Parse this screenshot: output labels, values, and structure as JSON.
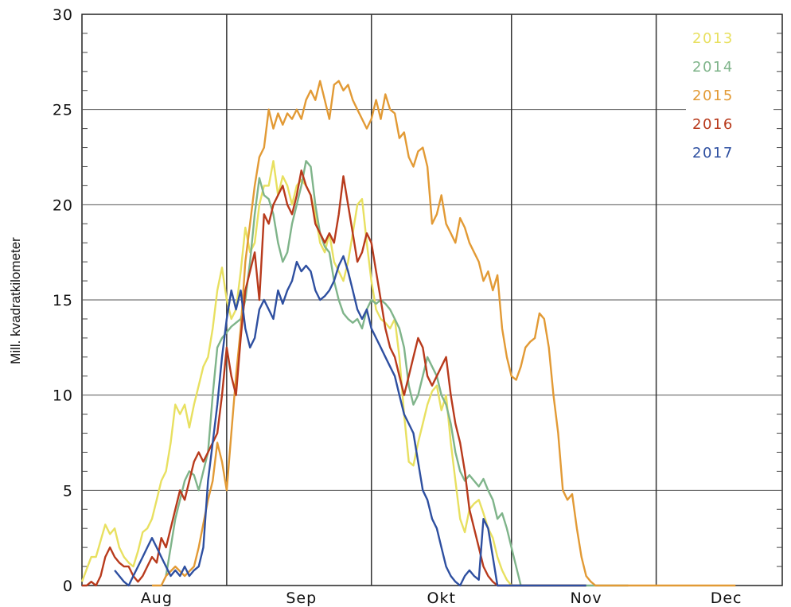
{
  "chart_data": {
    "type": "line",
    "ylabel": "Mill. kvadratkilometer",
    "ylim": [
      0,
      30
    ],
    "yticks": [
      "0",
      "5",
      "10",
      "15",
      "20",
      "25",
      "30"
    ],
    "x_unit": "days after 15 Jul",
    "xlim": [
      0,
      150
    ],
    "month_labels": [
      "Aug",
      "Sep",
      "Okt",
      "Nov",
      "Dec"
    ],
    "month_label_x": [
      16,
      47,
      77,
      108,
      138
    ],
    "month_boundaries_x": [
      0,
      31,
      62,
      92,
      123
    ],
    "legend_position": "top-right",
    "grid": true,
    "series": [
      {
        "name": "2013",
        "color": "#e8e060",
        "x": [
          0,
          2,
          3,
          5,
          6,
          7,
          8,
          9,
          10,
          11,
          12,
          13,
          14,
          15,
          16,
          17,
          18,
          19,
          20,
          21,
          22,
          23,
          24,
          25,
          26,
          27,
          28,
          29,
          30,
          31,
          32,
          33,
          34,
          35,
          36,
          37,
          38,
          39,
          40,
          41,
          42,
          43,
          44,
          45,
          46,
          47,
          48,
          49,
          50,
          51,
          52,
          53,
          54,
          55,
          56,
          57,
          58,
          59,
          60,
          61,
          62,
          63,
          64,
          65,
          66,
          67,
          68,
          69,
          70,
          71,
          72,
          73,
          74,
          75,
          76,
          77,
          78,
          79,
          80,
          81,
          82,
          83,
          84,
          85,
          86,
          87,
          88,
          89,
          90,
          91,
          92,
          93,
          94,
          95,
          96,
          97,
          98,
          99,
          100,
          101,
          102,
          103,
          104,
          105,
          106,
          107,
          108
        ],
        "y": [
          0.2,
          1.5,
          1.5,
          3.2,
          2.7,
          3.0,
          2.0,
          1.5,
          1.2,
          1.0,
          1.8,
          2.8,
          3.0,
          3.5,
          4.5,
          5.5,
          6.0,
          7.5,
          9.5,
          9.0,
          9.5,
          8.3,
          9.5,
          10.5,
          11.5,
          12.0,
          13.5,
          15.5,
          16.7,
          15.0,
          14.0,
          14.5,
          16.5,
          18.8,
          17.5,
          18.0,
          20.0,
          21.0,
          21.0,
          22.3,
          20.5,
          21.5,
          21.0,
          20.0,
          21.0,
          21.3,
          21.0,
          20.5,
          19.5,
          18.0,
          17.5,
          18.5,
          17.0,
          16.5,
          16.0,
          17.0,
          18.5,
          20.0,
          20.3,
          18.0,
          16.0,
          14.5,
          14.0,
          13.8,
          13.5,
          14.0,
          12.0,
          9.0,
          6.5,
          6.3,
          7.5,
          8.5,
          9.5,
          10.2,
          10.5,
          9.2,
          10.0,
          7.5,
          5.5,
          3.5,
          2.8,
          4.0,
          4.3,
          4.5,
          3.8,
          3.0,
          2.5,
          1.5,
          0.8,
          0.3,
          0.0,
          0.0,
          0.0,
          0.0,
          0.0,
          0.0,
          0.0,
          0.0,
          0.0,
          0.0,
          0.0,
          0.0,
          0.0,
          0.0,
          0.0,
          0.0,
          0.0
        ]
      },
      {
        "name": "2014",
        "color": "#7fb48a",
        "x": [
          18,
          19,
          20,
          21,
          22,
          23,
          24,
          25,
          26,
          27,
          28,
          29,
          30,
          31,
          32,
          33,
          34,
          35,
          36,
          37,
          38,
          39,
          40,
          41,
          42,
          43,
          44,
          45,
          46,
          47,
          48,
          49,
          50,
          51,
          52,
          53,
          54,
          55,
          56,
          57,
          58,
          59,
          60,
          61,
          62,
          63,
          64,
          65,
          66,
          67,
          68,
          69,
          70,
          71,
          72,
          73,
          74,
          75,
          76,
          77,
          78,
          79,
          80,
          81,
          82,
          83,
          84,
          85,
          86,
          87,
          88,
          89,
          90,
          91,
          92,
          93,
          94,
          95,
          96,
          97,
          98,
          99,
          100,
          101,
          102,
          103,
          104,
          105,
          106,
          107,
          108,
          109,
          110,
          111,
          112,
          113,
          114,
          115,
          116,
          117
        ],
        "y": [
          0.5,
          2.0,
          3.5,
          4.5,
          5.5,
          6.0,
          5.8,
          5.0,
          6.0,
          7.0,
          10.0,
          12.5,
          13.0,
          13.3,
          13.6,
          13.8,
          14.0,
          15.0,
          17.0,
          19.5,
          21.4,
          20.5,
          20.3,
          19.5,
          18.0,
          17.0,
          17.5,
          19.0,
          20.0,
          21.0,
          22.3,
          22.0,
          20.0,
          18.5,
          17.8,
          17.5,
          16.0,
          15.0,
          14.3,
          14.0,
          13.8,
          14.0,
          13.5,
          14.5,
          15.0,
          14.8,
          15.0,
          14.8,
          14.5,
          14.0,
          13.5,
          12.5,
          10.5,
          9.5,
          10.0,
          11.0,
          12.0,
          11.5,
          11.0,
          10.0,
          9.5,
          8.5,
          7.0,
          6.0,
          5.5,
          5.8,
          5.5,
          5.2,
          5.6,
          5.0,
          4.5,
          3.5,
          3.8,
          3.0,
          2.0,
          1.0,
          0.0,
          0.0,
          0.0,
          0.0,
          0.0,
          0.0,
          0.0,
          0.0,
          0.0,
          0.0,
          0.0,
          0.0,
          0.0,
          0.0,
          0.0,
          0.0,
          0.0,
          0.0,
          0.0,
          0.0,
          0.0,
          0.0,
          0.0,
          0.0
        ]
      },
      {
        "name": "2015",
        "color": "#e29a35",
        "x": [
          15,
          17,
          18,
          20,
          22,
          24,
          25,
          27,
          28,
          29,
          30,
          31,
          32,
          33,
          34,
          35,
          36,
          37,
          38,
          39,
          40,
          41,
          42,
          43,
          44,
          45,
          46,
          47,
          48,
          49,
          50,
          51,
          52,
          53,
          54,
          55,
          56,
          57,
          58,
          59,
          60,
          61,
          62,
          63,
          64,
          65,
          66,
          67,
          68,
          69,
          70,
          71,
          72,
          73,
          74,
          75,
          76,
          77,
          78,
          79,
          80,
          81,
          82,
          83,
          84,
          85,
          86,
          87,
          88,
          89,
          90,
          91,
          92,
          93,
          94,
          95,
          96,
          97,
          98,
          99,
          100,
          101,
          102,
          103,
          104,
          105,
          106,
          107,
          108,
          109,
          110,
          111,
          112,
          113,
          114,
          115,
          116,
          117,
          118,
          119,
          120,
          121,
          122,
          123,
          124,
          125,
          126,
          127,
          128,
          129,
          130,
          131,
          132,
          133,
          134,
          135,
          136,
          137,
          138,
          139,
          140
        ],
        "y": [
          0.0,
          0.0,
          0.5,
          1.0,
          0.5,
          1.0,
          2.0,
          4.5,
          5.5,
          7.5,
          6.5,
          5.0,
          8.0,
          11.0,
          13.5,
          17.0,
          19.0,
          21.0,
          22.5,
          23.0,
          25.0,
          24.0,
          24.8,
          24.2,
          24.8,
          24.5,
          25.0,
          24.5,
          25.5,
          26.0,
          25.5,
          26.5,
          25.5,
          24.5,
          26.3,
          26.5,
          26.0,
          26.3,
          25.5,
          25.0,
          24.5,
          24.0,
          24.5,
          25.5,
          24.5,
          25.8,
          25.0,
          24.8,
          23.5,
          23.8,
          22.5,
          22.0,
          22.8,
          23.0,
          22.0,
          19.0,
          19.5,
          20.5,
          19.0,
          18.5,
          18.0,
          19.3,
          18.8,
          18.0,
          17.5,
          17.0,
          16.0,
          16.5,
          15.5,
          16.3,
          13.5,
          12.0,
          11.0,
          10.8,
          11.5,
          12.5,
          12.8,
          13.0,
          14.3,
          14.0,
          12.5,
          10.0,
          8.0,
          5.0,
          4.5,
          4.8,
          3.0,
          1.5,
          0.5,
          0.2,
          0.0,
          0.0,
          0.0,
          0.0,
          0.0,
          0.0,
          0.0,
          0.0,
          0.0,
          0.0,
          0.0,
          0.0,
          0.0,
          0.0,
          0.0,
          0.0,
          0.0,
          0.0,
          0.0,
          0.0,
          0.0,
          0.0,
          0.0,
          0.0,
          0.0,
          0.0,
          0.0,
          0.0,
          0.0,
          0.0,
          0.0
        ]
      },
      {
        "name": "2016",
        "color": "#b83a1c",
        "x": [
          0,
          1,
          2,
          3,
          4,
          5,
          6,
          7,
          8,
          9,
          10,
          11,
          12,
          13,
          14,
          15,
          16,
          17,
          18,
          19,
          20,
          21,
          22,
          23,
          24,
          25,
          26,
          27,
          28,
          29,
          30,
          31,
          32,
          33,
          34,
          35,
          36,
          37,
          38,
          39,
          40,
          41,
          42,
          43,
          44,
          45,
          46,
          47,
          48,
          49,
          50,
          51,
          52,
          53,
          54,
          55,
          56,
          57,
          58,
          59,
          60,
          61,
          62,
          63,
          64,
          65,
          66,
          67,
          68,
          69,
          70,
          71,
          72,
          73,
          74,
          75,
          76,
          77,
          78,
          79,
          80,
          81,
          82,
          83,
          84,
          85,
          86,
          87,
          88,
          89,
          90,
          91,
          92,
          93,
          94,
          95,
          96,
          97,
          98,
          99,
          100,
          101,
          102,
          103,
          104,
          105,
          106,
          107,
          108
        ],
        "y": [
          0.0,
          0.0,
          0.2,
          0.0,
          0.5,
          1.5,
          2.0,
          1.5,
          1.2,
          1.0,
          1.0,
          0.5,
          0.2,
          0.5,
          1.0,
          1.5,
          1.2,
          2.5,
          2.0,
          3.0,
          4.0,
          5.0,
          4.5,
          5.5,
          6.5,
          7.0,
          6.5,
          7.0,
          7.5,
          8.0,
          10.0,
          12.5,
          11.0,
          10.0,
          13.0,
          15.5,
          16.5,
          17.5,
          15.0,
          19.5,
          19.0,
          20.0,
          20.5,
          21.0,
          20.0,
          19.5,
          20.5,
          21.8,
          21.0,
          20.5,
          19.0,
          18.5,
          18.0,
          18.5,
          18.0,
          19.5,
          21.5,
          20.0,
          18.5,
          17.0,
          17.5,
          18.5,
          18.0,
          16.5,
          15.0,
          13.5,
          12.5,
          12.0,
          11.0,
          10.0,
          11.0,
          12.0,
          13.0,
          12.5,
          11.0,
          10.5,
          11.0,
          11.5,
          12.0,
          10.0,
          8.5,
          7.5,
          6.0,
          4.0,
          3.0,
          2.0,
          1.0,
          0.5,
          0.2,
          0.0,
          0.0,
          0.0,
          0.0,
          0.0,
          0.0,
          0.0,
          0.0,
          0.0,
          0.0,
          0.0,
          0.0,
          0.0,
          0.0,
          0.0,
          0.0,
          0.0,
          0.0,
          0.0,
          0.0
        ]
      },
      {
        "name": "2017",
        "color": "#2e4fa0",
        "x": [
          7,
          8,
          9,
          10,
          11,
          12,
          13,
          14,
          15,
          16,
          17,
          18,
          19,
          20,
          21,
          22,
          23,
          24,
          25,
          26,
          27,
          28,
          29,
          30,
          31,
          32,
          33,
          34,
          35,
          36,
          37,
          38,
          39,
          40,
          41,
          42,
          43,
          44,
          45,
          46,
          47,
          48,
          49,
          50,
          51,
          52,
          53,
          54,
          55,
          56,
          57,
          58,
          59,
          60,
          61,
          62,
          63,
          64,
          65,
          66,
          67,
          68,
          69,
          70,
          71,
          72,
          73,
          74,
          75,
          76,
          77,
          78,
          79,
          80,
          81,
          82,
          83,
          84,
          85,
          86,
          87,
          88,
          89,
          90,
          91,
          92,
          93,
          94,
          95,
          96,
          97,
          98,
          99,
          100,
          101,
          102,
          103,
          104,
          105,
          106,
          107,
          108
        ],
        "y": [
          0.8,
          0.5,
          0.2,
          0.0,
          0.5,
          1.0,
          1.5,
          2.0,
          2.5,
          2.0,
          1.5,
          1.0,
          0.5,
          0.8,
          0.5,
          1.0,
          0.5,
          0.8,
          1.0,
          2.0,
          5.5,
          7.5,
          9.5,
          12.0,
          14.0,
          15.5,
          14.5,
          15.5,
          13.5,
          12.5,
          13.0,
          14.5,
          15.0,
          14.5,
          14.0,
          15.5,
          14.8,
          15.5,
          16.0,
          17.0,
          16.5,
          16.8,
          16.5,
          15.5,
          15.0,
          15.2,
          15.5,
          16.0,
          16.8,
          17.3,
          16.5,
          15.5,
          14.5,
          14.0,
          14.5,
          13.5,
          13.0,
          12.5,
          12.0,
          11.5,
          11.0,
          10.0,
          9.0,
          8.5,
          8.0,
          6.5,
          5.0,
          4.5,
          3.5,
          3.0,
          2.0,
          1.0,
          0.5,
          0.2,
          0.0,
          0.5,
          0.8,
          0.5,
          0.3,
          3.5,
          3.0,
          1.5,
          0.0,
          0.0,
          0.0,
          0.0,
          0.0,
          0.0,
          0.0,
          0.0,
          0.0,
          0.0,
          0.0,
          0.0,
          0.0,
          0.0,
          0.0,
          0.0,
          0.0,
          0.0,
          0.0,
          0.0
        ]
      }
    ]
  }
}
